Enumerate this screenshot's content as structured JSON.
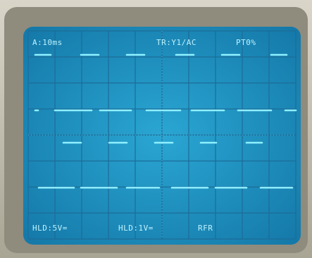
{
  "screen": {
    "timebase": "A:10ms",
    "trigger": "TR:Y1/AC",
    "pretrigger": "PT0%",
    "channel_1": "HLD:5V=",
    "channel_2": "HLD:1V=",
    "mode": "RFR"
  }
}
